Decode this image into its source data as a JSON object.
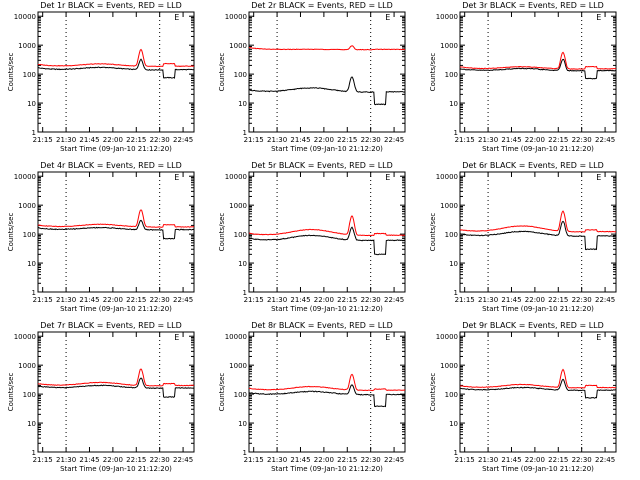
{
  "colors": {
    "events": "#000000",
    "lld": "#ff0000",
    "axis": "#000000"
  },
  "common": {
    "ylabel": "Counts/sec",
    "xlabel": "Start Time (09-Jan-10 21:12:20)",
    "xticks": [
      "21:15",
      "21:30",
      "21:45",
      "22:00",
      "22:15",
      "22:30",
      "22:45"
    ],
    "yticks": [
      "1",
      "10",
      "100",
      "1000",
      "10000"
    ],
    "ylim": [
      1,
      14000
    ],
    "xlim_minutes": [
      0,
      100
    ],
    "xtick_minutes": [
      3,
      18,
      33,
      48,
      63,
      78,
      93
    ],
    "dotted_lines_minutes": [
      18,
      78
    ],
    "axis_marker_label": "E"
  },
  "chart_data": [
    {
      "type": "line",
      "title": "Det 1r BLACK = Events, RED = LLD",
      "events": {
        "base": 140,
        "swell": 1.22,
        "peak": 320,
        "dip_level": 75
      },
      "lld": {
        "base": 185,
        "swell": 1.22,
        "peak": 700,
        "dip_level": 230
      }
    },
    {
      "type": "line",
      "title": "Det 2r BLACK = Events, RED = LLD",
      "events": {
        "base": 24,
        "swell": 1.4,
        "peak": 80,
        "dip_level": 9
      },
      "lld": {
        "base": 700,
        "swell": 1.03,
        "peak": 950,
        "dip_level": 720
      }
    },
    {
      "type": "line",
      "title": "Det 3r BLACK = Events, RED = LLD",
      "events": {
        "base": 130,
        "swell": 1.2,
        "peak": 330,
        "dip_level": 70
      },
      "lld": {
        "base": 150,
        "swell": 1.2,
        "peak": 560,
        "dip_level": 180
      }
    },
    {
      "type": "line",
      "title": "Det 4r BLACK = Events, RED = LLD",
      "events": {
        "base": 140,
        "swell": 1.2,
        "peak": 300,
        "dip_level": 70
      },
      "lld": {
        "base": 175,
        "swell": 1.25,
        "peak": 700,
        "dip_level": 210
      }
    },
    {
      "type": "line",
      "title": "Det 5r BLACK = Events, RED = LLD",
      "events": {
        "base": 60,
        "swell": 1.5,
        "peak": 170,
        "dip_level": 20
      },
      "lld": {
        "base": 90,
        "swell": 1.6,
        "peak": 420,
        "dip_level": 105
      }
    },
    {
      "type": "line",
      "title": "Det 6r BLACK = Events, RED = LLD",
      "events": {
        "base": 85,
        "swell": 1.45,
        "peak": 280,
        "dip_level": 30
      },
      "lld": {
        "base": 120,
        "swell": 1.6,
        "peak": 620,
        "dip_level": 140
      }
    },
    {
      "type": "line",
      "title": "Det 7r BLACK = Events, RED = LLD",
      "events": {
        "base": 160,
        "swell": 1.25,
        "peak": 360,
        "dip_level": 80
      },
      "lld": {
        "base": 195,
        "swell": 1.3,
        "peak": 750,
        "dip_level": 230
      }
    },
    {
      "type": "line",
      "title": "Det 8r BLACK = Events, RED = LLD",
      "events": {
        "base": 95,
        "swell": 1.3,
        "peak": 210,
        "dip_level": 38
      },
      "lld": {
        "base": 135,
        "swell": 1.35,
        "peak": 480,
        "dip_level": 150
      }
    },
    {
      "type": "line",
      "title": "Det 9r BLACK = Events, RED = LLD",
      "events": {
        "base": 135,
        "swell": 1.25,
        "peak": 320,
        "dip_level": 75
      },
      "lld": {
        "base": 165,
        "swell": 1.3,
        "peak": 700,
        "dip_level": 200
      }
    }
  ]
}
